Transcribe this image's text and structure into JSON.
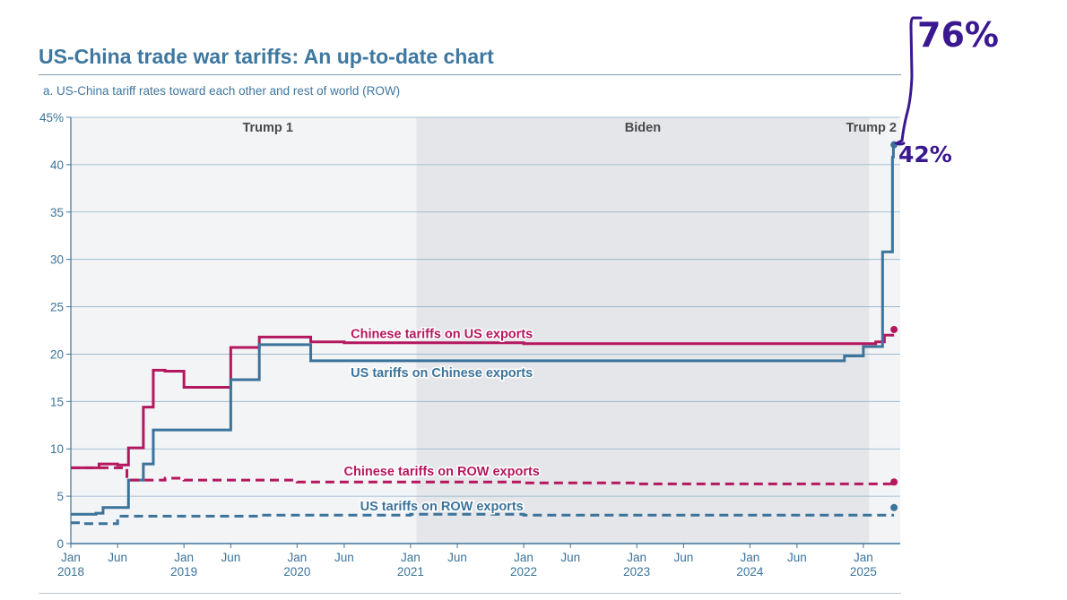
{
  "page": {
    "title": "US-China trade war tariffs: An up-to-date chart",
    "subtitle": "a. US-China tariff rates toward each other and rest of world (ROW)"
  },
  "chart_data": {
    "type": "line",
    "xlim": [
      "2018-01-01",
      "2025-04-30"
    ],
    "ylim": [
      0,
      45
    ],
    "y_ticks": [
      0,
      5,
      10,
      15,
      20,
      25,
      30,
      35,
      40,
      45
    ],
    "y_tick_labels": [
      "0",
      "5",
      "10",
      "15",
      "20",
      "25",
      "30",
      "35",
      "40",
      "45%"
    ],
    "x_ticks": [
      {
        "date": "2018-01-01",
        "label": "Jan",
        "year": "2018"
      },
      {
        "date": "2018-06-01",
        "label": "Jun",
        "year": ""
      },
      {
        "date": "2019-01-01",
        "label": "Jan",
        "year": "2019"
      },
      {
        "date": "2019-06-01",
        "label": "Jun",
        "year": ""
      },
      {
        "date": "2020-01-01",
        "label": "Jan",
        "year": "2020"
      },
      {
        "date": "2020-06-01",
        "label": "Jun",
        "year": ""
      },
      {
        "date": "2021-01-01",
        "label": "Jan",
        "year": "2021"
      },
      {
        "date": "2021-06-01",
        "label": "Jun",
        "year": ""
      },
      {
        "date": "2022-01-01",
        "label": "Jan",
        "year": "2022"
      },
      {
        "date": "2022-06-01",
        "label": "Jun",
        "year": ""
      },
      {
        "date": "2023-01-01",
        "label": "Jan",
        "year": "2023"
      },
      {
        "date": "2023-06-01",
        "label": "Jun",
        "year": ""
      },
      {
        "date": "2024-01-01",
        "label": "Jan",
        "year": "2024"
      },
      {
        "date": "2024-06-01",
        "label": "Jun",
        "year": ""
      },
      {
        "date": "2025-01-01",
        "label": "Jan",
        "year": "2025"
      }
    ],
    "grid": true,
    "periods": [
      {
        "label": "Trump 1",
        "start": "2018-01-01",
        "end": "2021-01-20",
        "fill": "#f3f4f6"
      },
      {
        "label": "Biden",
        "start": "2021-01-20",
        "end": "2025-01-20",
        "fill": "#e5e6e9"
      },
      {
        "label": "Trump 2",
        "start": "2025-01-20",
        "end": "2025-04-30",
        "fill": "#f3f4f6"
      }
    ],
    "series": [
      {
        "name": "Chinese tariffs on US exports",
        "color": "#b5175f",
        "dashed": false,
        "step": true,
        "points": [
          [
            "2018-01-01",
            8.0
          ],
          [
            "2018-04-02",
            8.4
          ],
          [
            "2018-06-01",
            8.3
          ],
          [
            "2018-07-06",
            10.1
          ],
          [
            "2018-08-23",
            14.4
          ],
          [
            "2018-09-24",
            18.3
          ],
          [
            "2018-11-01",
            18.2
          ],
          [
            "2019-01-01",
            16.5
          ],
          [
            "2019-06-01",
            20.7
          ],
          [
            "2019-09-01",
            21.8
          ],
          [
            "2020-01-01",
            21.8
          ],
          [
            "2020-02-14",
            21.3
          ],
          [
            "2020-06-01",
            21.2
          ],
          [
            "2021-01-01",
            21.2
          ],
          [
            "2021-06-01",
            21.2
          ],
          [
            "2022-01-01",
            21.1
          ],
          [
            "2023-01-01",
            21.1
          ],
          [
            "2024-01-01",
            21.1
          ],
          [
            "2024-12-01",
            21.1
          ],
          [
            "2025-02-10",
            21.3
          ],
          [
            "2025-03-10",
            22.0
          ],
          [
            "2025-04-10",
            22.0
          ]
        ],
        "end_point": [
          "2025-04-10",
          22.6
        ]
      },
      {
        "name": "US tariffs on Chinese exports",
        "color": "#3b739b",
        "dashed": false,
        "step": true,
        "points": [
          [
            "2018-01-01",
            3.1
          ],
          [
            "2018-03-23",
            3.2
          ],
          [
            "2018-04-15",
            3.8
          ],
          [
            "2018-07-06",
            6.7
          ],
          [
            "2018-08-23",
            8.4
          ],
          [
            "2018-09-24",
            12.0
          ],
          [
            "2019-06-01",
            17.3
          ],
          [
            "2019-09-01",
            21.0
          ],
          [
            "2020-02-14",
            19.3
          ],
          [
            "2024-09-27",
            19.3
          ],
          [
            "2024-11-01",
            19.8
          ],
          [
            "2025-01-01",
            20.8
          ],
          [
            "2025-02-04",
            20.8
          ],
          [
            "2025-03-04",
            30.8
          ],
          [
            "2025-03-25",
            30.8
          ],
          [
            "2025-04-05",
            40.8
          ],
          [
            "2025-04-08",
            41.8
          ],
          [
            "2025-04-10",
            41.8
          ]
        ],
        "end_point": [
          "2025-04-10",
          42.1
        ]
      },
      {
        "name": "Chinese tariffs on ROW exports",
        "color": "#b5175f",
        "dashed": true,
        "step": true,
        "points": [
          [
            "2018-01-01",
            8.0
          ],
          [
            "2018-07-01",
            6.7
          ],
          [
            "2018-11-01",
            6.9
          ],
          [
            "2019-01-01",
            6.7
          ],
          [
            "2020-01-01",
            6.5
          ],
          [
            "2022-01-01",
            6.4
          ],
          [
            "2023-01-01",
            6.3
          ],
          [
            "2025-04-10",
            6.5
          ]
        ],
        "end_point": [
          "2025-04-10",
          6.5
        ]
      },
      {
        "name": "US tariffs on ROW exports",
        "color": "#3b739b",
        "dashed": true,
        "step": true,
        "points": [
          [
            "2018-01-01",
            2.2
          ],
          [
            "2018-02-07",
            2.1
          ],
          [
            "2018-06-01",
            2.9
          ],
          [
            "2019-09-01",
            3.0
          ],
          [
            "2021-01-01",
            3.1
          ],
          [
            "2022-01-01",
            3.0
          ],
          [
            "2025-04-10",
            3.0
          ]
        ],
        "end_point": [
          "2025-04-10",
          3.8
        ]
      }
    ],
    "annotations": [
      {
        "text": "Chinese tariffs on US exports",
        "color": "#b5175f",
        "x": "2021-01-15",
        "y": 21.7
      },
      {
        "text": "US tariffs on Chinese exports",
        "color": "#3b739b",
        "x": "2021-01-15",
        "y": 17.6
      },
      {
        "text": "Chinese tariffs on ROW exports",
        "color": "#b5175f",
        "x": "2021-01-15",
        "y": 7.2
      },
      {
        "text": "US tariffs on ROW exports",
        "color": "#3b739b",
        "x": "2021-01-15",
        "y": 3.5
      }
    ],
    "handwritten": {
      "color": "#3a1890",
      "values": [
        "76%",
        "42%"
      ]
    }
  }
}
